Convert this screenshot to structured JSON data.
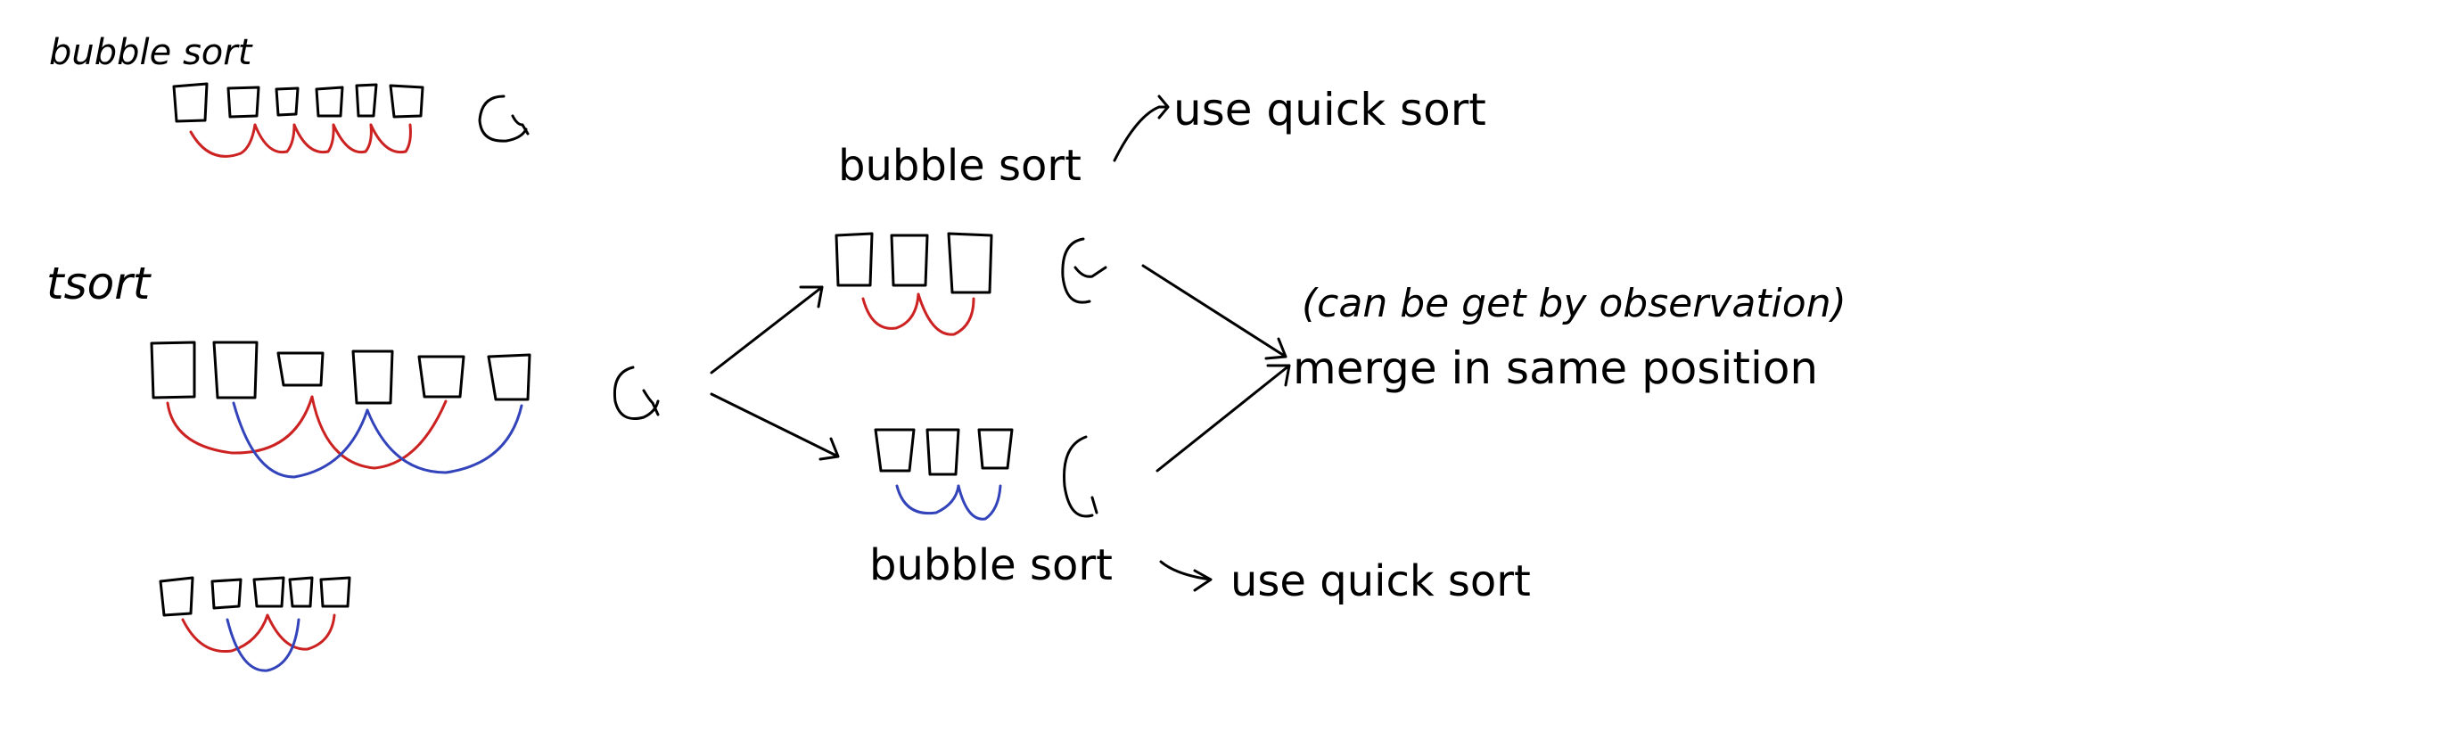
{
  "colors": {
    "ink": "#000000",
    "pair_red": "#cc2222",
    "pair_blue": "#3344bb",
    "background": "#ffffff"
  },
  "left": {
    "bubble_label": "bubble sort",
    "tsort_label": "tsort"
  },
  "right": {
    "top_label": "bubble sort",
    "top_note": "use quick sort",
    "bottom_label": "bubble sort",
    "bottom_note": "use quick sort",
    "merge_label": "merge in same position",
    "observation_note": "(can be get by observation)"
  },
  "icons": {
    "loop": "cycle-arrow-icon"
  }
}
